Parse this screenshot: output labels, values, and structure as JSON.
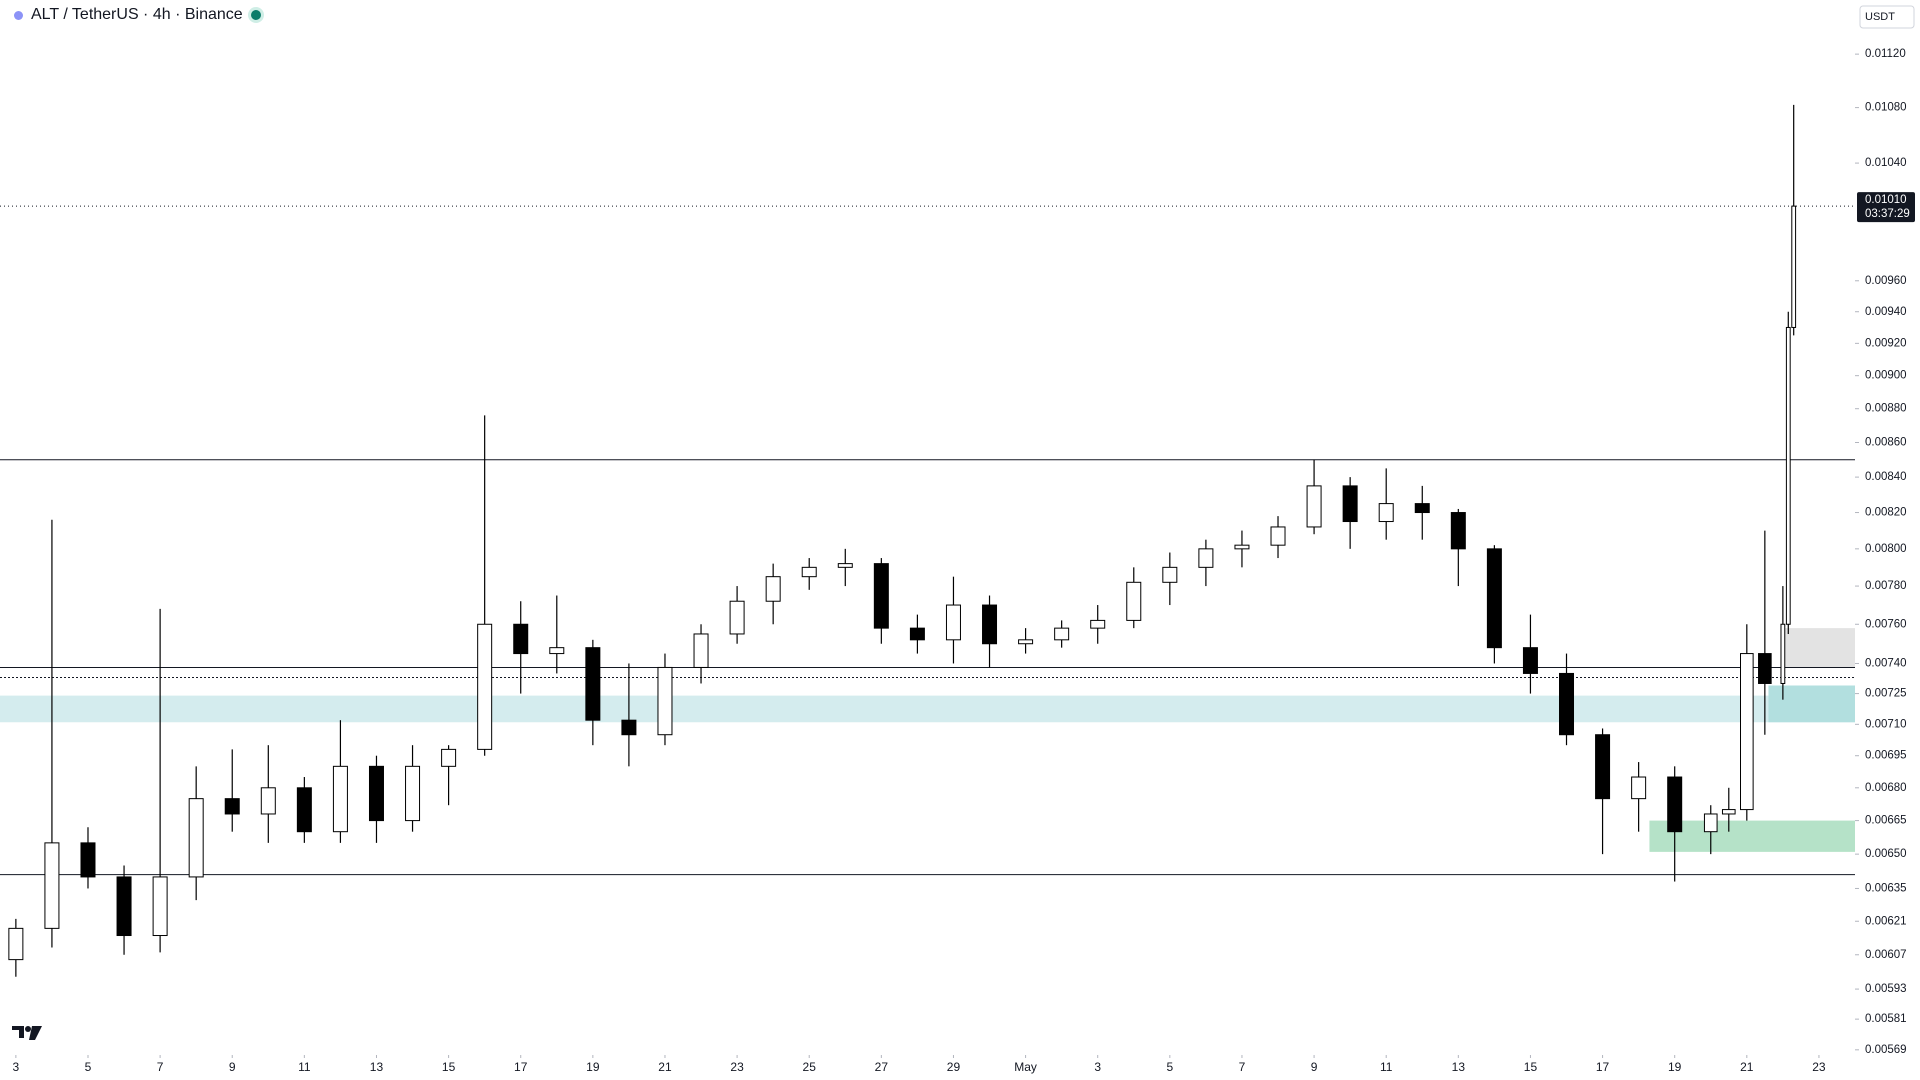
{
  "chart_data": {
    "type": "candlestick",
    "title": "ALT / TetherUS · 4h · Binance",
    "currency": "USDT",
    "x": [
      0,
      1,
      2,
      3,
      4,
      5,
      6,
      7,
      8,
      9,
      10,
      11,
      12,
      13,
      14,
      15,
      16,
      17,
      18,
      19,
      20,
      21,
      22,
      23,
      24,
      25,
      26,
      27,
      28,
      29,
      30,
      31,
      32,
      33,
      34,
      35,
      36,
      37,
      38,
      39,
      40,
      41,
      42,
      43,
      44,
      45,
      46,
      47,
      47.5,
      48,
      48.5,
      49,
      49.15,
      49.3
    ],
    "open": [
      0.00605,
      0.00618,
      0.00655,
      0.0064,
      0.00615,
      0.0064,
      0.00675,
      0.00668,
      0.0068,
      0.0066,
      0.0069,
      0.00665,
      0.0069,
      0.00698,
      0.0076,
      0.00745,
      0.00748,
      0.00712,
      0.00705,
      0.00738,
      0.00755,
      0.00772,
      0.00785,
      0.0079,
      0.00792,
      0.00758,
      0.00752,
      0.0077,
      0.0075,
      0.00752,
      0.00758,
      0.00762,
      0.00782,
      0.0079,
      0.008,
      0.00802,
      0.00812,
      0.00835,
      0.00815,
      0.00825,
      0.0082,
      0.008,
      0.00748,
      0.00735,
      0.00705,
      0.00675,
      0.00685,
      0.0066,
      0.00668,
      0.0067,
      0.00745,
      0.0073,
      0.0076,
      0.0093
    ],
    "high": [
      0.00622,
      0.00816,
      0.00662,
      0.00645,
      0.00768,
      0.0069,
      0.00698,
      0.007,
      0.00685,
      0.00712,
      0.00695,
      0.007,
      0.007,
      0.00876,
      0.00772,
      0.00775,
      0.00752,
      0.0074,
      0.00745,
      0.0076,
      0.0078,
      0.00792,
      0.00795,
      0.008,
      0.00795,
      0.00765,
      0.00785,
      0.00775,
      0.00758,
      0.00762,
      0.0077,
      0.0079,
      0.00798,
      0.00805,
      0.0081,
      0.00818,
      0.0085,
      0.0084,
      0.00845,
      0.00835,
      0.00822,
      0.00802,
      0.00765,
      0.00745,
      0.00708,
      0.00692,
      0.0069,
      0.00672,
      0.0068,
      0.0076,
      0.0081,
      0.0078,
      0.0094,
      0.01082
    ],
    "low": [
      0.00598,
      0.0061,
      0.00635,
      0.00607,
      0.00608,
      0.0063,
      0.0066,
      0.00655,
      0.00655,
      0.00655,
      0.00655,
      0.0066,
      0.00672,
      0.00695,
      0.00725,
      0.00735,
      0.007,
      0.0069,
      0.007,
      0.0073,
      0.0075,
      0.0076,
      0.00778,
      0.0078,
      0.0075,
      0.00745,
      0.0074,
      0.00738,
      0.00745,
      0.00748,
      0.0075,
      0.00758,
      0.0077,
      0.0078,
      0.0079,
      0.00795,
      0.00808,
      0.008,
      0.00805,
      0.00805,
      0.0078,
      0.0074,
      0.00725,
      0.007,
      0.0065,
      0.0066,
      0.00638,
      0.0065,
      0.0066,
      0.00665,
      0.00705,
      0.00722,
      0.00755,
      0.00925
    ],
    "close": [
      0.00618,
      0.00655,
      0.0064,
      0.00615,
      0.0064,
      0.00675,
      0.00668,
      0.0068,
      0.0066,
      0.0069,
      0.00665,
      0.0069,
      0.00698,
      0.0076,
      0.00745,
      0.00748,
      0.00712,
      0.00705,
      0.00738,
      0.00755,
      0.00772,
      0.00785,
      0.0079,
      0.00792,
      0.00758,
      0.00752,
      0.0077,
      0.0075,
      0.00752,
      0.00758,
      0.00762,
      0.00782,
      0.0079,
      0.008,
      0.00802,
      0.00812,
      0.00835,
      0.00815,
      0.00825,
      0.0082,
      0.008,
      0.00748,
      0.00735,
      0.00705,
      0.00675,
      0.00685,
      0.0066,
      0.00668,
      0.0067,
      0.00745,
      0.0073,
      0.0076,
      0.0093,
      0.0101
    ],
    "up_color": "#ffffff",
    "down_color": "#000000",
    "xlim": [
      -0.44,
      51.0
    ],
    "xticks": [
      {
        "value": 0,
        "label": "3"
      },
      {
        "value": 2,
        "label": "5"
      },
      {
        "value": 4,
        "label": "7"
      },
      {
        "value": 6,
        "label": "9"
      },
      {
        "value": 8,
        "label": "11"
      },
      {
        "value": 10,
        "label": "13"
      },
      {
        "value": 12,
        "label": "15"
      },
      {
        "value": 14,
        "label": "17"
      },
      {
        "value": 16,
        "label": "19"
      },
      {
        "value": 18,
        "label": "21"
      },
      {
        "value": 20,
        "label": "23"
      },
      {
        "value": 22,
        "label": "25"
      },
      {
        "value": 24,
        "label": "27"
      },
      {
        "value": 26,
        "label": "29"
      },
      {
        "value": 28,
        "label": "May"
      },
      {
        "value": 30,
        "label": "3"
      },
      {
        "value": 32,
        "label": "5"
      },
      {
        "value": 34,
        "label": "7"
      },
      {
        "value": 36,
        "label": "9"
      },
      {
        "value": 38,
        "label": "11"
      },
      {
        "value": 40,
        "label": "13"
      },
      {
        "value": 42,
        "label": "15"
      },
      {
        "value": 44,
        "label": "17"
      },
      {
        "value": 46,
        "label": "19"
      },
      {
        "value": 48,
        "label": "21"
      },
      {
        "value": 50,
        "label": "23"
      }
    ],
    "log_scale": true,
    "ylim": [
      0.00567,
      0.01162
    ],
    "yticks": [
      {
        "value": 0.0112,
        "label": "0.01120"
      },
      {
        "value": 0.0108,
        "label": "0.01080"
      },
      {
        "value": 0.0104,
        "label": "0.01040"
      },
      {
        "value": 0.0096,
        "label": "0.00960"
      },
      {
        "value": 0.0094,
        "label": "0.00940"
      },
      {
        "value": 0.0092,
        "label": "0.00920"
      },
      {
        "value": 0.009,
        "label": "0.00900"
      },
      {
        "value": 0.0088,
        "label": "0.00880"
      },
      {
        "value": 0.0086,
        "label": "0.00860"
      },
      {
        "value": 0.0084,
        "label": "0.00840"
      },
      {
        "value": 0.0082,
        "label": "0.00820"
      },
      {
        "value": 0.008,
        "label": "0.00800"
      },
      {
        "value": 0.0078,
        "label": "0.00780"
      },
      {
        "value": 0.0076,
        "label": "0.00760"
      },
      {
        "value": 0.0074,
        "label": "0.00740"
      },
      0.00725,
      {
        "value": 0.0071,
        "label": "0.00710"
      },
      0.00695,
      {
        "value": 0.0068,
        "label": "0.00680"
      },
      0.00665,
      {
        "value": 0.0065,
        "label": "0.00650"
      },
      0.00635,
      0.00621,
      0.00607,
      0.00593,
      0.00581,
      0.00569
    ],
    "last_price": {
      "value": 0.0101,
      "label": "0.01010"
    },
    "countdown": "03:37:29",
    "hlines": [
      0.0085,
      0.00738,
      0.00641
    ],
    "dotted_hlines": [
      0.00733
    ],
    "zones": [
      {
        "from": 0.00711,
        "to": 0.00724,
        "color": "#d4ecee"
      },
      {
        "from": 0.00711,
        "to": 0.00729,
        "xstart": 48.6,
        "color": "#b2dfdf"
      },
      {
        "from": 0.00738,
        "to": 0.00758,
        "xstart": 49.0,
        "color": "#e3e3e3"
      },
      {
        "from": 0.00651,
        "to": 0.00665,
        "xstart": 45.3,
        "color": "#b5e2c8"
      }
    ]
  }
}
